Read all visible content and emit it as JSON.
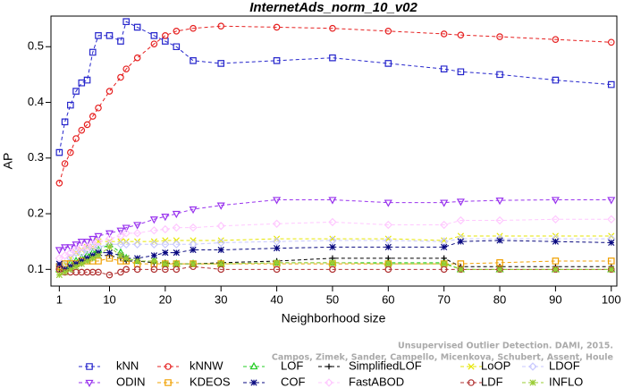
{
  "chart_data": {
    "type": "line",
    "title": "InternetAds_norm_10_v02",
    "xlabel": "Neighborhood size",
    "ylabel": "AP",
    "annotations": [
      "Unsupervised Outlier Detection. DAMI, 2015.",
      "Campos, Zimek, Sander, Campello, Micenkova, Schubert, Assent, Houle"
    ],
    "x": [
      1,
      2,
      3,
      4,
      5,
      6,
      7,
      8,
      10,
      12,
      13,
      15,
      18,
      20,
      22,
      25,
      30,
      40,
      50,
      60,
      70,
      73,
      80,
      90,
      100
    ],
    "xlim": [
      -0.5,
      101
    ],
    "xticks": [
      1,
      10,
      20,
      30,
      40,
      50,
      60,
      70,
      80,
      90,
      100
    ],
    "ylim": [
      0.07,
      0.555
    ],
    "yticks": [
      0.1,
      0.2,
      0.3,
      0.4,
      0.5
    ],
    "series": [
      {
        "name": "kNN",
        "color": "#2626cc",
        "marker": "square",
        "values": [
          0.31,
          0.365,
          0.395,
          0.42,
          0.435,
          0.44,
          0.49,
          0.52,
          0.52,
          0.51,
          0.545,
          0.535,
          0.52,
          0.51,
          0.5,
          0.475,
          0.47,
          0.475,
          0.48,
          0.47,
          0.46,
          0.455,
          0.45,
          0.44,
          0.432
        ]
      },
      {
        "name": "kNNW",
        "color": "#e62020",
        "marker": "circle",
        "values": [
          0.255,
          0.29,
          0.31,
          0.335,
          0.35,
          0.36,
          0.375,
          0.39,
          0.42,
          0.445,
          0.46,
          0.48,
          0.505,
          0.52,
          0.528,
          0.533,
          0.537,
          0.535,
          0.533,
          0.528,
          0.523,
          0.521,
          0.518,
          0.513,
          0.508
        ]
      },
      {
        "name": "LOF",
        "color": "#22cc22",
        "marker": "triangle",
        "values": [
          0.1,
          0.105,
          0.11,
          0.115,
          0.12,
          0.125,
          0.13,
          0.135,
          0.145,
          0.13,
          0.12,
          0.115,
          0.115,
          0.11,
          0.11,
          0.11,
          0.11,
          0.112,
          0.112,
          0.112,
          0.112,
          0.1,
          0.1,
          0.1,
          0.1
        ]
      },
      {
        "name": "SimplifiedLOF",
        "color": "#000000",
        "marker": "plus",
        "values": [
          0.1,
          0.095,
          0.1,
          0.105,
          0.11,
          0.115,
          0.12,
          0.125,
          0.125,
          0.12,
          0.115,
          0.115,
          0.112,
          0.112,
          0.11,
          0.11,
          0.112,
          0.115,
          0.12,
          0.12,
          0.12,
          0.105,
          0.105,
          0.105,
          0.105
        ]
      },
      {
        "name": "LoOP",
        "color": "#e6e600",
        "marker": "cross",
        "values": [
          0.1,
          0.11,
          0.12,
          0.13,
          0.135,
          0.14,
          0.14,
          0.15,
          0.15,
          0.15,
          0.15,
          0.15,
          0.15,
          0.152,
          0.152,
          0.152,
          0.152,
          0.155,
          0.155,
          0.155,
          0.152,
          0.16,
          0.16,
          0.16,
          0.16
        ]
      },
      {
        "name": "LDOF",
        "color": "#c8c8ff",
        "marker": "diamond",
        "values": [
          0.1,
          0.11,
          0.12,
          0.13,
          0.13,
          0.135,
          0.14,
          0.14,
          0.145,
          0.145,
          0.145,
          0.145,
          0.145,
          0.145,
          0.145,
          0.145,
          0.148,
          0.15,
          0.152,
          0.152,
          0.15,
          0.155,
          0.155,
          0.155,
          0.155
        ]
      },
      {
        "name": "ODIN",
        "color": "#9933ee",
        "marker": "triangle-down",
        "values": [
          0.135,
          0.14,
          0.14,
          0.145,
          0.15,
          0.15,
          0.155,
          0.16,
          0.165,
          0.17,
          0.175,
          0.18,
          0.19,
          0.195,
          0.2,
          0.208,
          0.215,
          0.225,
          0.225,
          0.22,
          0.22,
          0.222,
          0.224,
          0.225,
          0.225
        ]
      },
      {
        "name": "KDEOS",
        "color": "#f0a000",
        "marker": "square",
        "values": [
          0.105,
          0.11,
          0.11,
          0.11,
          0.115,
          0.115,
          0.115,
          0.115,
          0.12,
          0.115,
          0.115,
          0.11,
          0.11,
          0.11,
          0.11,
          0.11,
          0.11,
          0.11,
          0.11,
          0.11,
          0.11,
          0.11,
          0.112,
          0.115,
          0.115
        ]
      },
      {
        "name": "COF",
        "color": "#0a0a80",
        "marker": "star",
        "values": [
          0.11,
          0.1,
          0.105,
          0.11,
          0.115,
          0.12,
          0.125,
          0.13,
          0.13,
          0.125,
          0.12,
          0.12,
          0.125,
          0.13,
          0.13,
          0.135,
          0.135,
          0.138,
          0.14,
          0.14,
          0.14,
          0.15,
          0.152,
          0.15,
          0.148
        ]
      },
      {
        "name": "FastABOD",
        "color": "#ffc8ff",
        "marker": "diamond",
        "values": [
          0.12,
          0.125,
          0.13,
          0.135,
          0.14,
          0.14,
          0.145,
          0.15,
          0.155,
          0.16,
          0.165,
          0.165,
          0.17,
          0.172,
          0.175,
          0.175,
          0.178,
          0.182,
          0.185,
          0.18,
          0.18,
          0.188,
          0.188,
          0.19,
          0.19
        ]
      },
      {
        "name": "LDF",
        "color": "#b03030",
        "marker": "circle",
        "values": [
          0.1,
          0.095,
          0.095,
          0.095,
          0.095,
          0.095,
          0.095,
          0.095,
          0.09,
          0.095,
          0.1,
          0.1,
          0.1,
          0.1,
          0.1,
          0.105,
          0.1,
          0.1,
          0.1,
          0.1,
          0.1,
          0.1,
          0.1,
          0.1,
          0.1
        ]
      },
      {
        "name": "INFLO",
        "color": "#99cc33",
        "marker": "star",
        "values": [
          0.09,
          0.095,
          0.1,
          0.105,
          0.11,
          0.115,
          0.12,
          0.125,
          0.14,
          0.125,
          0.12,
          0.115,
          0.115,
          0.11,
          0.11,
          0.11,
          0.11,
          0.112,
          0.112,
          0.11,
          0.11,
          0.1,
          0.1,
          0.1,
          0.1
        ]
      }
    ]
  }
}
